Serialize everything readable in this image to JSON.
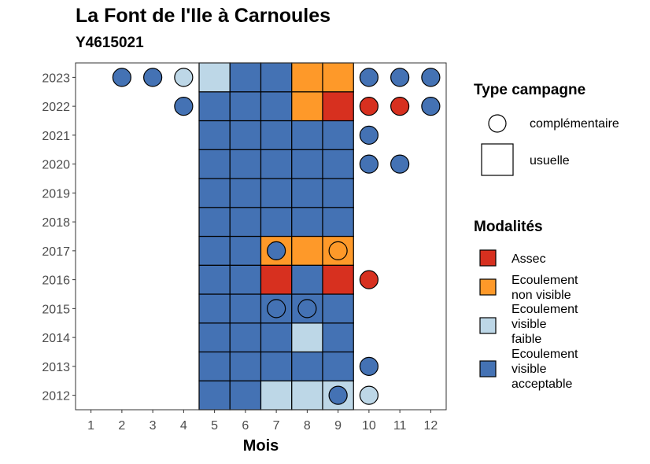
{
  "title": "La Font de l'Ile à Carnoules",
  "subtitle": "Y4615021",
  "chart_data": {
    "type": "heatmap",
    "xlabel": "Mois",
    "ylabel": "",
    "x_categories": [
      "1",
      "2",
      "3",
      "4",
      "5",
      "6",
      "7",
      "8",
      "9",
      "10",
      "11",
      "12"
    ],
    "y_categories": [
      "2012",
      "2013",
      "2014",
      "2015",
      "2016",
      "2017",
      "2018",
      "2019",
      "2020",
      "2021",
      "2022",
      "2023"
    ],
    "colors": {
      "Assec": "#d7301f",
      "Ecoulement non visible": "#fe9929",
      "Ecoulement visible faible": "#bdd7e7",
      "Ecoulement visible acceptable": "#4472b4"
    },
    "shape_legend": {
      "title": "Type campagne",
      "items": [
        {
          "key": "complementaire",
          "label": "complémentaire",
          "shape": "circle"
        },
        {
          "key": "usuelle",
          "label": "usuelle",
          "shape": "square"
        }
      ]
    },
    "color_legend": {
      "title": "Modalités",
      "items": [
        {
          "key": "Assec",
          "label_lines": [
            "Assec"
          ]
        },
        {
          "key": "Ecoulement non visible",
          "label_lines": [
            "Ecoulement",
            "non visible"
          ]
        },
        {
          "key": "Ecoulement visible faible",
          "label_lines": [
            "Ecoulement",
            "visible",
            "faible"
          ]
        },
        {
          "key": "Ecoulement visible acceptable",
          "label_lines": [
            "Ecoulement",
            "visible",
            "acceptable"
          ]
        }
      ]
    },
    "squares": [
      {
        "year": "2012",
        "month": 5,
        "v": "Ecoulement visible acceptable"
      },
      {
        "year": "2012",
        "month": 6,
        "v": "Ecoulement visible acceptable"
      },
      {
        "year": "2012",
        "month": 7,
        "v": "Ecoulement visible faible"
      },
      {
        "year": "2012",
        "month": 8,
        "v": "Ecoulement visible faible"
      },
      {
        "year": "2012",
        "month": 9,
        "v": "Ecoulement visible faible"
      },
      {
        "year": "2013",
        "month": 5,
        "v": "Ecoulement visible acceptable"
      },
      {
        "year": "2013",
        "month": 6,
        "v": "Ecoulement visible acceptable"
      },
      {
        "year": "2013",
        "month": 7,
        "v": "Ecoulement visible acceptable"
      },
      {
        "year": "2013",
        "month": 8,
        "v": "Ecoulement visible acceptable"
      },
      {
        "year": "2013",
        "month": 9,
        "v": "Ecoulement visible acceptable"
      },
      {
        "year": "2014",
        "month": 5,
        "v": "Ecoulement visible acceptable"
      },
      {
        "year": "2014",
        "month": 6,
        "v": "Ecoulement visible acceptable"
      },
      {
        "year": "2014",
        "month": 7,
        "v": "Ecoulement visible acceptable"
      },
      {
        "year": "2014",
        "month": 8,
        "v": "Ecoulement visible faible"
      },
      {
        "year": "2014",
        "month": 9,
        "v": "Ecoulement visible acceptable"
      },
      {
        "year": "2015",
        "month": 5,
        "v": "Ecoulement visible acceptable"
      },
      {
        "year": "2015",
        "month": 6,
        "v": "Ecoulement visible acceptable"
      },
      {
        "year": "2015",
        "month": 7,
        "v": "Ecoulement visible acceptable"
      },
      {
        "year": "2015",
        "month": 8,
        "v": "Ecoulement visible acceptable"
      },
      {
        "year": "2015",
        "month": 9,
        "v": "Ecoulement visible acceptable"
      },
      {
        "year": "2016",
        "month": 5,
        "v": "Ecoulement visible acceptable"
      },
      {
        "year": "2016",
        "month": 6,
        "v": "Ecoulement visible acceptable"
      },
      {
        "year": "2016",
        "month": 7,
        "v": "Assec"
      },
      {
        "year": "2016",
        "month": 8,
        "v": "Ecoulement visible acceptable"
      },
      {
        "year": "2016",
        "month": 9,
        "v": "Assec"
      },
      {
        "year": "2017",
        "month": 5,
        "v": "Ecoulement visible acceptable"
      },
      {
        "year": "2017",
        "month": 6,
        "v": "Ecoulement visible acceptable"
      },
      {
        "year": "2017",
        "month": 7,
        "v": "Ecoulement non visible"
      },
      {
        "year": "2017",
        "month": 8,
        "v": "Ecoulement non visible"
      },
      {
        "year": "2017",
        "month": 9,
        "v": "Ecoulement non visible"
      },
      {
        "year": "2018",
        "month": 5,
        "v": "Ecoulement visible acceptable"
      },
      {
        "year": "2018",
        "month": 6,
        "v": "Ecoulement visible acceptable"
      },
      {
        "year": "2018",
        "month": 7,
        "v": "Ecoulement visible acceptable"
      },
      {
        "year": "2018",
        "month": 8,
        "v": "Ecoulement visible acceptable"
      },
      {
        "year": "2018",
        "month": 9,
        "v": "Ecoulement visible acceptable"
      },
      {
        "year": "2019",
        "month": 5,
        "v": "Ecoulement visible acceptable"
      },
      {
        "year": "2019",
        "month": 6,
        "v": "Ecoulement visible acceptable"
      },
      {
        "year": "2019",
        "month": 7,
        "v": "Ecoulement visible acceptable"
      },
      {
        "year": "2019",
        "month": 8,
        "v": "Ecoulement visible acceptable"
      },
      {
        "year": "2019",
        "month": 9,
        "v": "Ecoulement visible acceptable"
      },
      {
        "year": "2020",
        "month": 5,
        "v": "Ecoulement visible acceptable"
      },
      {
        "year": "2020",
        "month": 6,
        "v": "Ecoulement visible acceptable"
      },
      {
        "year": "2020",
        "month": 7,
        "v": "Ecoulement visible acceptable"
      },
      {
        "year": "2020",
        "month": 8,
        "v": "Ecoulement visible acceptable"
      },
      {
        "year": "2020",
        "month": 9,
        "v": "Ecoulement visible acceptable"
      },
      {
        "year": "2021",
        "month": 5,
        "v": "Ecoulement visible acceptable"
      },
      {
        "year": "2021",
        "month": 6,
        "v": "Ecoulement visible acceptable"
      },
      {
        "year": "2021",
        "month": 7,
        "v": "Ecoulement visible acceptable"
      },
      {
        "year": "2021",
        "month": 8,
        "v": "Ecoulement visible acceptable"
      },
      {
        "year": "2021",
        "month": 9,
        "v": "Ecoulement visible acceptable"
      },
      {
        "year": "2022",
        "month": 5,
        "v": "Ecoulement visible acceptable"
      },
      {
        "year": "2022",
        "month": 6,
        "v": "Ecoulement visible acceptable"
      },
      {
        "year": "2022",
        "month": 7,
        "v": "Ecoulement visible acceptable"
      },
      {
        "year": "2022",
        "month": 8,
        "v": "Ecoulement non visible"
      },
      {
        "year": "2022",
        "month": 9,
        "v": "Assec"
      },
      {
        "year": "2023",
        "month": 5,
        "v": "Ecoulement visible faible"
      },
      {
        "year": "2023",
        "month": 6,
        "v": "Ecoulement visible acceptable"
      },
      {
        "year": "2023",
        "month": 7,
        "v": "Ecoulement visible acceptable"
      },
      {
        "year": "2023",
        "month": 8,
        "v": "Ecoulement non visible"
      },
      {
        "year": "2023",
        "month": 9,
        "v": "Ecoulement non visible"
      }
    ],
    "circles": [
      {
        "year": "2012",
        "month": 9,
        "v": "Ecoulement visible acceptable"
      },
      {
        "year": "2012",
        "month": 10,
        "v": "Ecoulement visible faible"
      },
      {
        "year": "2013",
        "month": 10,
        "v": "Ecoulement visible acceptable"
      },
      {
        "year": "2015",
        "month": 7,
        "v": "Ecoulement visible acceptable"
      },
      {
        "year": "2015",
        "month": 8,
        "v": "Ecoulement visible acceptable"
      },
      {
        "year": "2016",
        "month": 10,
        "v": "Assec"
      },
      {
        "year": "2017",
        "month": 7,
        "v": "Ecoulement visible acceptable"
      },
      {
        "year": "2017",
        "month": 9,
        "v": "Ecoulement non visible"
      },
      {
        "year": "2020",
        "month": 10,
        "v": "Ecoulement visible acceptable"
      },
      {
        "year": "2020",
        "month": 11,
        "v": "Ecoulement visible acceptable"
      },
      {
        "year": "2021",
        "month": 10,
        "v": "Ecoulement visible acceptable"
      },
      {
        "year": "2022",
        "month": 4,
        "v": "Ecoulement visible acceptable"
      },
      {
        "year": "2022",
        "month": 10,
        "v": "Assec"
      },
      {
        "year": "2022",
        "month": 11,
        "v": "Assec"
      },
      {
        "year": "2022",
        "month": 12,
        "v": "Ecoulement visible acceptable"
      },
      {
        "year": "2023",
        "month": 2,
        "v": "Ecoulement visible acceptable"
      },
      {
        "year": "2023",
        "month": 3,
        "v": "Ecoulement visible acceptable"
      },
      {
        "year": "2023",
        "month": 4,
        "v": "Ecoulement visible faible"
      },
      {
        "year": "2023",
        "month": 10,
        "v": "Ecoulement visible acceptable"
      },
      {
        "year": "2023",
        "month": 11,
        "v": "Ecoulement visible acceptable"
      },
      {
        "year": "2023",
        "month": 12,
        "v": "Ecoulement visible acceptable"
      }
    ]
  }
}
